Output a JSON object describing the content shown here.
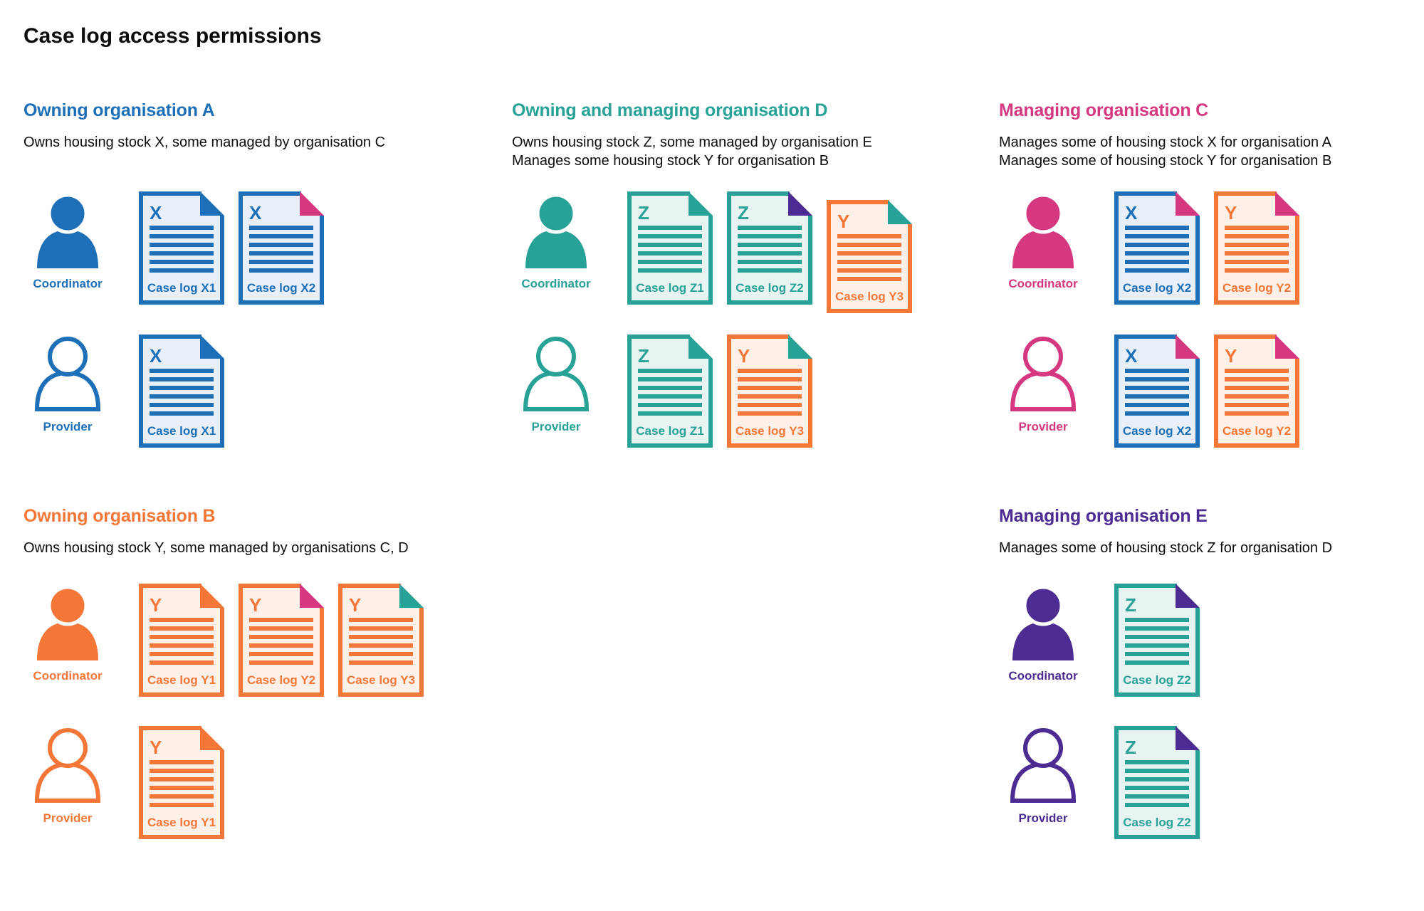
{
  "title": "Case log access permissions",
  "palette": {
    "blue": "#1d70b8",
    "teal": "#28a197",
    "pink": "#d53880",
    "orange": "#f47738",
    "purple": "#4c2c92",
    "ink": "#0b0c0c",
    "doc_fill_blue": "#e8eff8",
    "doc_fill_teal": "#e7f4f2",
    "doc_fill_orange": "#fdf0e8"
  },
  "sections": [
    {
      "name": "Owning organisation A",
      "color": "blue",
      "description_lines": [
        "Owns housing stock X, some managed by organisation C"
      ],
      "rows": [
        {
          "role_label": "Coordinator",
          "person_style": "filled",
          "docs": [
            {
              "letter": "X",
              "label": "Case log X1",
              "color": "blue",
              "fold": "blue"
            },
            {
              "letter": "X",
              "label": "Case log X2",
              "color": "blue",
              "fold": "pink"
            }
          ]
        },
        {
          "role_label": "Provider",
          "person_style": "outline",
          "docs": [
            {
              "letter": "X",
              "label": "Case log X1",
              "color": "blue",
              "fold": "blue"
            }
          ]
        }
      ]
    },
    {
      "name": "Owning and managing organisation D",
      "color": "teal",
      "description_lines": [
        "Owns housing stock Z, some managed by organisation E",
        "Manages some housing stock Y for organisation B"
      ],
      "rows": [
        {
          "role_label": "Coordinator",
          "person_style": "filled",
          "docs": [
            {
              "letter": "Z",
              "label": "Case log Z1",
              "color": "teal",
              "fold": "teal"
            },
            {
              "letter": "Z",
              "label": "Case log Z2",
              "color": "teal",
              "fold": "purple"
            },
            {
              "letter": "Y",
              "label": "Case log Y3",
              "color": "orange",
              "fold": "teal"
            }
          ]
        },
        {
          "role_label": "Provider",
          "person_style": "outline",
          "docs": [
            {
              "letter": "Z",
              "label": "Case log Z1",
              "color": "teal",
              "fold": "teal"
            },
            {
              "letter": "Y",
              "label": "Case log Y3",
              "color": "orange",
              "fold": "teal"
            }
          ]
        }
      ]
    },
    {
      "name": "Managing organisation C",
      "color": "pink",
      "description_lines": [
        "Manages some of housing stock X for organisation A",
        "Manages some of housing stock Y for organisation B"
      ],
      "rows": [
        {
          "role_label": "Coordinator",
          "person_style": "filled",
          "docs": [
            {
              "letter": "X",
              "label": "Case log X2",
              "color": "blue",
              "fold": "pink"
            },
            {
              "letter": "Y",
              "label": "Case log Y2",
              "color": "orange",
              "fold": "pink"
            }
          ]
        },
        {
          "role_label": "Provider",
          "person_style": "outline",
          "docs": [
            {
              "letter": "X",
              "label": "Case log X2",
              "color": "blue",
              "fold": "pink"
            },
            {
              "letter": "Y",
              "label": "Case log Y2",
              "color": "orange",
              "fold": "pink"
            }
          ]
        }
      ]
    },
    {
      "name": "Owning organisation B",
      "color": "orange",
      "description_lines": [
        "Owns housing stock Y, some managed by organisations C, D"
      ],
      "rows": [
        {
          "role_label": "Coordinator",
          "person_style": "filled",
          "docs": [
            {
              "letter": "Y",
              "label": "Case log Y1",
              "color": "orange",
              "fold": "orange"
            },
            {
              "letter": "Y",
              "label": "Case log Y2",
              "color": "orange",
              "fold": "pink"
            },
            {
              "letter": "Y",
              "label": "Case log Y3",
              "color": "orange",
              "fold": "teal"
            }
          ]
        },
        {
          "role_label": "Provider",
          "person_style": "outline",
          "docs": [
            {
              "letter": "Y",
              "label": "Case log Y1",
              "color": "orange",
              "fold": "orange"
            }
          ]
        }
      ]
    },
    {
      "name": "Managing organisation E",
      "color": "purple",
      "description_lines": [
        "Manages some of housing stock Z for organisation D"
      ],
      "rows": [
        {
          "role_label": "Coordinator",
          "person_style": "filled",
          "docs": [
            {
              "letter": "Z",
              "label": "Case log Z2",
              "color": "teal",
              "fold": "purple"
            }
          ]
        },
        {
          "role_label": "Provider",
          "person_style": "outline",
          "docs": [
            {
              "letter": "Z",
              "label": "Case log Z2",
              "color": "teal",
              "fold": "purple"
            }
          ]
        }
      ]
    }
  ]
}
